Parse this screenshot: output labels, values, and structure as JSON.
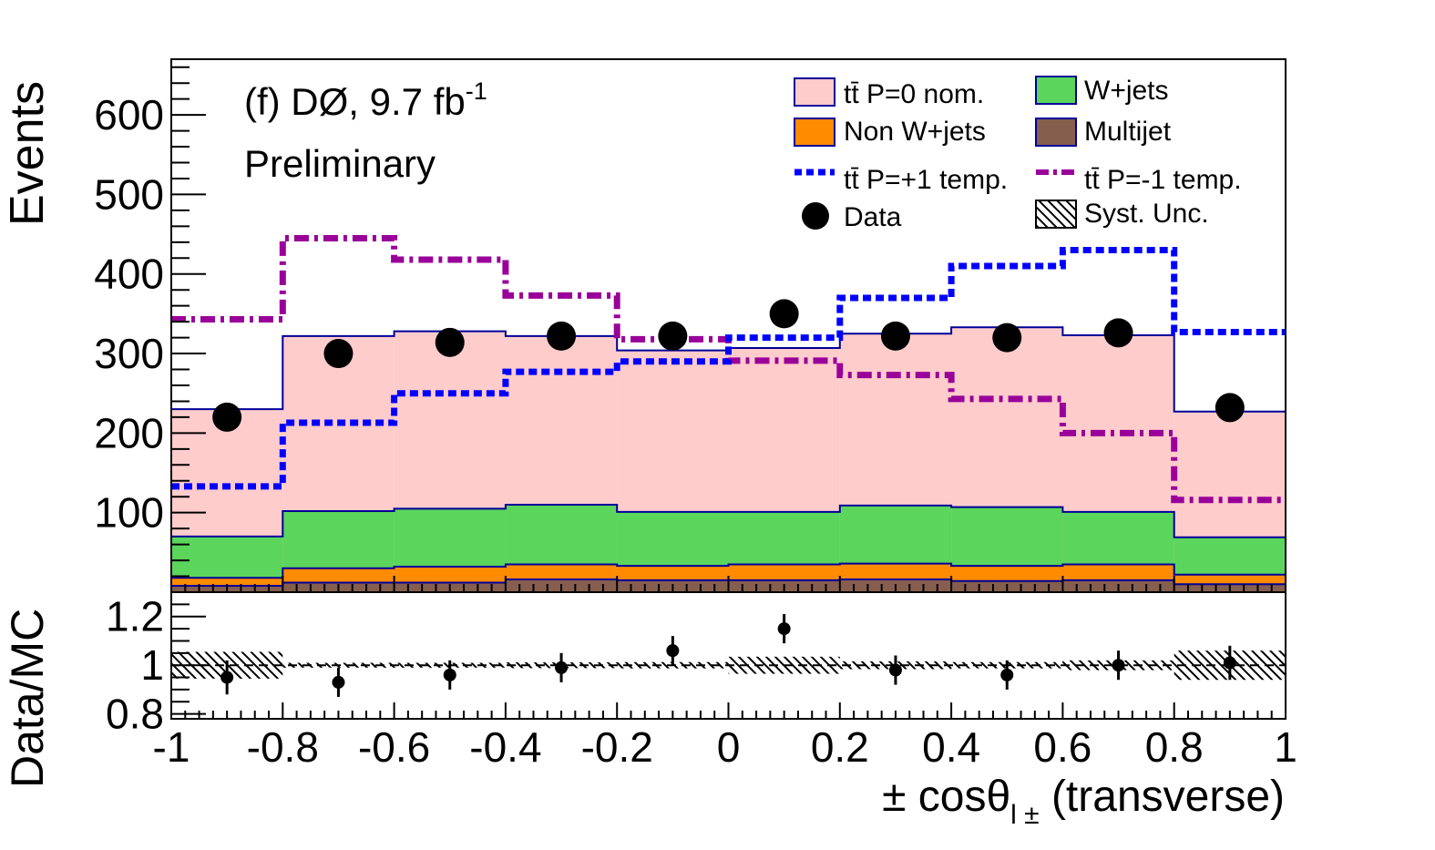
{
  "chart_data": {
    "type": "histogram",
    "x_bins": [
      -1,
      -0.8,
      -0.6,
      -0.4,
      -0.2,
      0,
      0.2,
      0.4,
      0.6,
      0.8,
      1
    ],
    "x_centers": [
      -0.9,
      -0.7,
      -0.5,
      -0.3,
      -0.1,
      0.1,
      0.3,
      0.5,
      0.7,
      0.9
    ],
    "xlim": [
      -1,
      1
    ],
    "x_ticks": [
      -1,
      -0.8,
      -0.6,
      -0.4,
      -0.2,
      0,
      0.2,
      0.4,
      0.6,
      0.8,
      1
    ],
    "x_tick_labels": [
      "-1",
      "-0.8",
      "-0.6",
      "-0.4",
      "-0.2",
      "0",
      "0.2",
      "0.4",
      "0.6",
      "0.8",
      "1"
    ],
    "xlabel": {
      "main": "± cosθ",
      "sub": "l ±",
      "tail": " (transverse)"
    },
    "top": {
      "ylabel": "Events",
      "ylim": [
        0,
        670
      ],
      "y_ticks": [
        100,
        200,
        300,
        400,
        500,
        600
      ],
      "y_tick_labels": [
        "100",
        "200",
        "300",
        "400",
        "500",
        "600"
      ],
      "stack": [
        {
          "name": "Multijet",
          "color": "#855e4e",
          "values": [
            8,
            12,
            12,
            16,
            15,
            15,
            16,
            14,
            15,
            10
          ]
        },
        {
          "name": "Non W+jets",
          "color": "#ff8b00",
          "values": [
            10,
            18,
            20,
            19,
            18,
            20,
            20,
            19,
            20,
            12
          ]
        },
        {
          "name": "W+jets",
          "color": "#5bd55b",
          "values": [
            52,
            72,
            73,
            75,
            68,
            66,
            73,
            74,
            66,
            47
          ]
        },
        {
          "name": "tt̄ P=0 nom.",
          "color": "#ffcccc",
          "values": [
            160,
            220,
            223,
            212,
            203,
            206,
            216,
            226,
            222,
            158
          ]
        }
      ],
      "stack_outline_color": "#000099",
      "p_plus_1": {
        "name": "tt̄ P=+1 temp.",
        "color": "#0000ff",
        "values": [
          133,
          213,
          250,
          277,
          290,
          320,
          370,
          410,
          430,
          327
        ]
      },
      "p_minus_1": {
        "name": "tt̄ P=-1 temp.",
        "color": "#990099",
        "values": [
          343,
          445,
          418,
          373,
          318,
          291,
          273,
          243,
          200,
          116
        ]
      },
      "data": {
        "name": "Data",
        "values": [
          220,
          300,
          314,
          322,
          322,
          350,
          322,
          320,
          326,
          232
        ]
      }
    },
    "bottom": {
      "ylabel": "Data/MC",
      "ylim": [
        0.78,
        1.3
      ],
      "y_ticks": [
        0.8,
        1,
        1.2
      ],
      "y_tick_labels": [
        "0.8",
        "1",
        "1.2"
      ],
      "ratio": [
        0.95,
        0.93,
        0.96,
        0.99,
        1.06,
        1.15,
        0.98,
        0.96,
        1.0,
        1.01
      ],
      "ratio_err": [
        0.07,
        0.06,
        0.06,
        0.06,
        0.06,
        0.06,
        0.06,
        0.06,
        0.06,
        0.07
      ],
      "syst_unc": [
        0.055,
        0.01,
        0.01,
        0.012,
        0.013,
        0.035,
        0.016,
        0.013,
        0.02,
        0.06
      ]
    },
    "annotations": {
      "experiment": "(f) DØ, 9.7 fb",
      "lumi_exp": "-1",
      "status": "Preliminary"
    },
    "legend": {
      "position": "top-right",
      "entries": [
        {
          "key": "ttbar",
          "label": "tt̄ P=0 nom."
        },
        {
          "key": "wjets",
          "label": "W+jets"
        },
        {
          "key": "nonw",
          "label": "Non W+jets"
        },
        {
          "key": "multijet",
          "label": "Multijet"
        },
        {
          "key": "pplus",
          "label": "tt̄ P=+1 temp."
        },
        {
          "key": "pminus",
          "label": "tt̄ P=-1 temp."
        },
        {
          "key": "data",
          "label": "Data"
        },
        {
          "key": "syst",
          "label": "Syst. Unc."
        }
      ]
    }
  }
}
